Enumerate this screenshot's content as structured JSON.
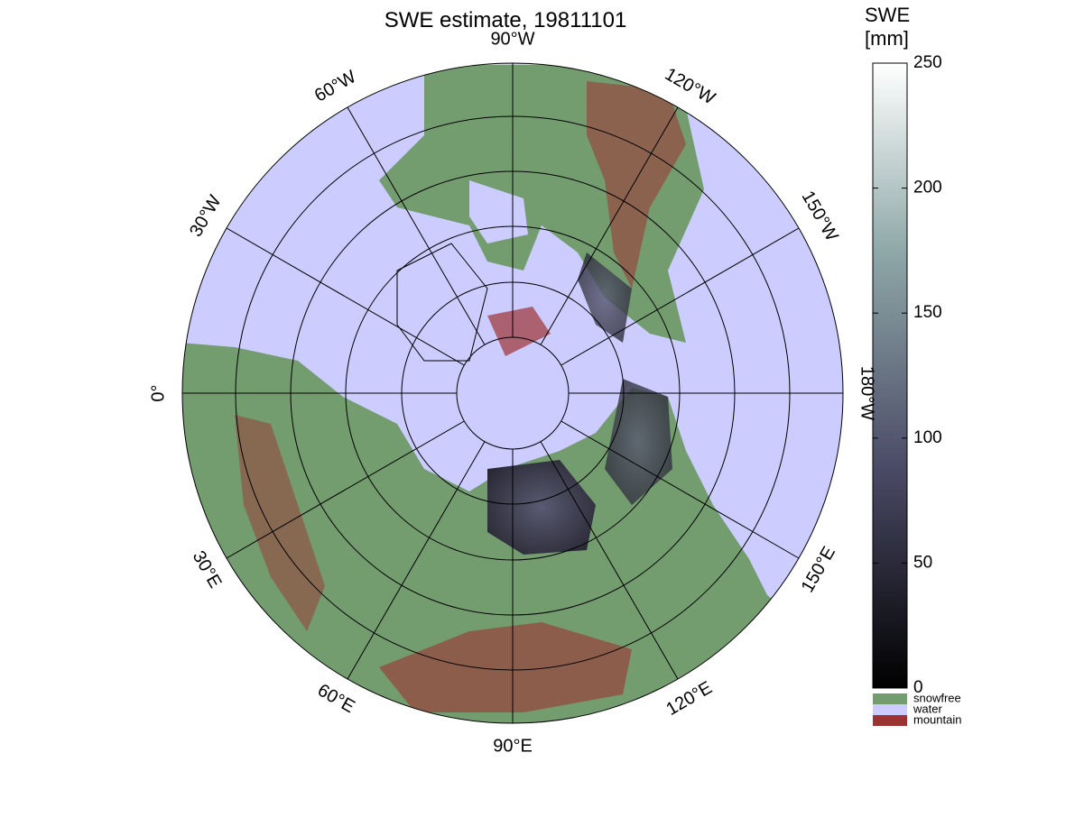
{
  "title": "SWE estimate, 19811101",
  "map": {
    "longitude_labels": [
      {
        "value": -90,
        "label": "90°W"
      },
      {
        "value": -60,
        "label": "60°W"
      },
      {
        "value": -120,
        "label": "120°W"
      },
      {
        "value": -30,
        "label": "30°W"
      },
      {
        "value": -150,
        "label": "150°W"
      },
      {
        "value": 0,
        "label": "0°"
      },
      {
        "value": 180,
        "label": "180°W"
      },
      {
        "value": 30,
        "label": "30°E"
      },
      {
        "value": 150,
        "label": "150°E"
      },
      {
        "value": 60,
        "label": "60°E"
      },
      {
        "value": 120,
        "label": "120°E"
      },
      {
        "value": 90,
        "label": "90°E"
      }
    ]
  },
  "colorbar": {
    "title_lines": [
      "SWE",
      "[mm]"
    ],
    "lim": [
      0,
      250
    ],
    "ticks": [
      0,
      50,
      100,
      150,
      200,
      250
    ],
    "classes": [
      {
        "name": "snowfree",
        "color": "#739c6f"
      },
      {
        "name": "water",
        "color": "#ccccff"
      },
      {
        "name": "mountain",
        "color": "#9c3333"
      }
    ]
  }
}
